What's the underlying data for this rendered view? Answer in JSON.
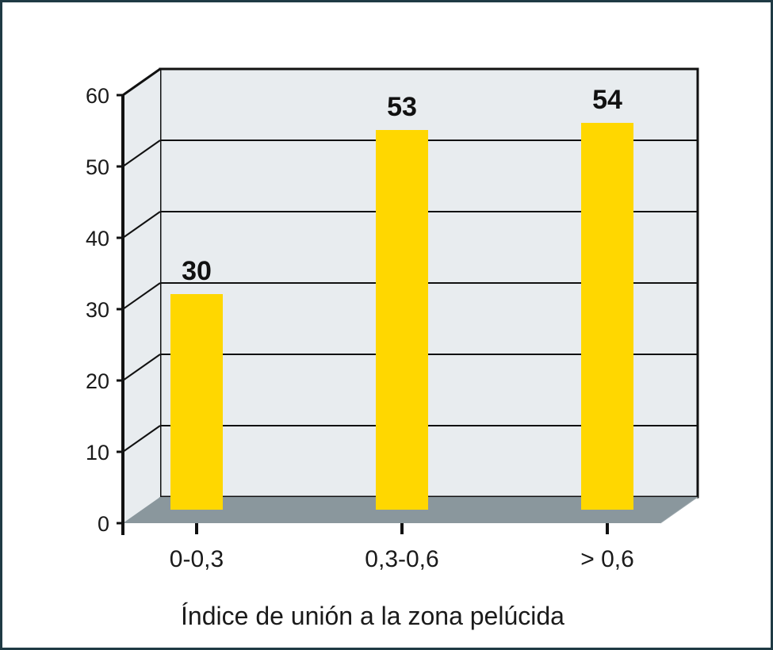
{
  "chart_data": {
    "type": "bar",
    "categories": [
      "0-0,3",
      "0,3-0,6",
      "> 0,6"
    ],
    "values": [
      30,
      53,
      54
    ],
    "value_labels": [
      "30",
      "53",
      "54"
    ],
    "title": "",
    "xlabel": "Índice de unión a la zona pelúcida",
    "ylabel": "",
    "ylim": [
      0,
      60
    ],
    "yticks": [
      "0",
      "10",
      "20",
      "30",
      "40",
      "50",
      "60"
    ],
    "grid": true,
    "style": "3d",
    "colors": {
      "bar": "#FFD700",
      "wall": "#E8ECEF",
      "floor": "#8A979D",
      "frame": "#1F3A44",
      "grid": "#111111"
    }
  }
}
